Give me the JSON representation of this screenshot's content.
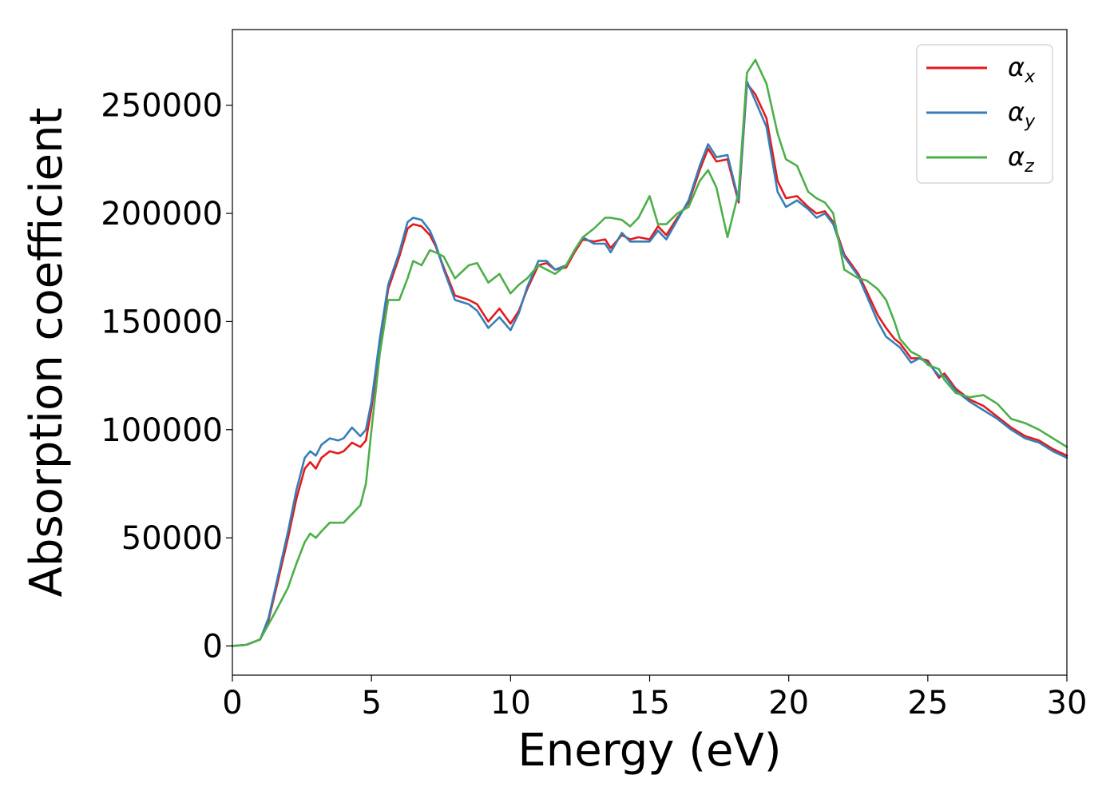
{
  "chart_data": {
    "type": "line",
    "xlabel": "Energy (eV)",
    "ylabel": "Absorption coefficient",
    "xlim": [
      0,
      30
    ],
    "ylim": [
      -13500,
      285000
    ],
    "xticks": [
      "0",
      "5",
      "10",
      "15",
      "20",
      "25",
      "30"
    ],
    "yticks": [
      "0",
      "50000",
      "100000",
      "150000",
      "200000",
      "250000"
    ],
    "grid": false,
    "legend_position": "top-right",
    "series": [
      {
        "name": "α",
        "subscript": "x",
        "color": "#e41a1c",
        "x": [
          0,
          0.5,
          1.0,
          1.3,
          1.6,
          2.0,
          2.3,
          2.6,
          2.8,
          3.0,
          3.2,
          3.5,
          3.8,
          4.0,
          4.3,
          4.6,
          4.8,
          5.0,
          5.3,
          5.6,
          6.0,
          6.3,
          6.5,
          6.8,
          7.1,
          7.3,
          7.6,
          8.0,
          8.5,
          8.8,
          9.2,
          9.6,
          10.0,
          10.3,
          10.6,
          11.0,
          11.3,
          11.6,
          12.0,
          12.3,
          12.6,
          13.0,
          13.4,
          13.6,
          14.0,
          14.3,
          14.6,
          15.0,
          15.3,
          15.6,
          16.0,
          16.4,
          16.8,
          17.1,
          17.4,
          17.8,
          18.2,
          18.5,
          18.8,
          19.2,
          19.6,
          19.9,
          20.3,
          20.7,
          21.0,
          21.3,
          21.6,
          22.0,
          22.5,
          22.8,
          23.2,
          23.5,
          23.8,
          24.0,
          24.4,
          24.7,
          25.0,
          25.4,
          25.6,
          26.0,
          26.5,
          27.0,
          27.5,
          28.0,
          28.5,
          29.0,
          29.5,
          30.0
        ],
        "y": [
          0,
          500,
          3000,
          12000,
          28000,
          50000,
          68000,
          82000,
          85000,
          82000,
          87000,
          90000,
          89000,
          90000,
          94000,
          92000,
          95000,
          110000,
          140000,
          165000,
          180000,
          193000,
          195000,
          194000,
          190000,
          185000,
          175000,
          162000,
          160000,
          158000,
          150000,
          156000,
          149000,
          155000,
          165000,
          176000,
          177000,
          174000,
          175000,
          182000,
          188000,
          187000,
          188000,
          184000,
          190000,
          188000,
          189000,
          188000,
          194000,
          190000,
          198000,
          205000,
          220000,
          230000,
          224000,
          225000,
          205000,
          260000,
          255000,
          244000,
          215000,
          207000,
          208000,
          203000,
          200000,
          201000,
          196000,
          181000,
          172000,
          164000,
          153000,
          147000,
          142000,
          140000,
          133000,
          133000,
          132000,
          124000,
          126000,
          119000,
          114000,
          111000,
          106000,
          101000,
          97000,
          95000,
          91000,
          88000
        ]
      },
      {
        "name": "α",
        "subscript": "y",
        "color": "#377eb8",
        "x": [
          0,
          0.5,
          1.0,
          1.3,
          1.6,
          2.0,
          2.3,
          2.6,
          2.8,
          3.0,
          3.2,
          3.5,
          3.8,
          4.0,
          4.3,
          4.6,
          4.8,
          5.0,
          5.3,
          5.6,
          6.0,
          6.3,
          6.5,
          6.8,
          7.1,
          7.3,
          7.6,
          8.0,
          8.5,
          8.8,
          9.2,
          9.6,
          10.0,
          10.3,
          10.6,
          11.0,
          11.3,
          11.6,
          12.0,
          12.3,
          12.6,
          13.0,
          13.4,
          13.6,
          14.0,
          14.3,
          14.6,
          15.0,
          15.3,
          15.6,
          16.0,
          16.4,
          16.8,
          17.1,
          17.4,
          17.8,
          18.2,
          18.5,
          18.8,
          19.2,
          19.6,
          19.9,
          20.3,
          20.7,
          21.0,
          21.3,
          21.6,
          22.0,
          22.5,
          22.8,
          23.2,
          23.5,
          23.8,
          24.0,
          24.4,
          24.7,
          25.0,
          25.4,
          25.6,
          26.0,
          26.5,
          27.0,
          27.5,
          28.0,
          28.5,
          29.0,
          29.5,
          30.0
        ],
        "y": [
          0,
          500,
          3000,
          13000,
          30000,
          53000,
          72000,
          87000,
          90000,
          88000,
          93000,
          96000,
          95000,
          96000,
          101000,
          97000,
          100000,
          113000,
          142000,
          167000,
          182000,
          196000,
          198000,
          197000,
          192000,
          186000,
          174000,
          160000,
          158000,
          155000,
          147000,
          152000,
          146000,
          154000,
          166000,
          178000,
          178000,
          174000,
          176000,
          183000,
          189000,
          186000,
          186000,
          182000,
          191000,
          187000,
          187000,
          187000,
          192000,
          188000,
          197000,
          206000,
          222000,
          232000,
          226000,
          227000,
          206000,
          261000,
          252000,
          240000,
          210000,
          203000,
          206000,
          202000,
          198000,
          200000,
          195000,
          180000,
          171000,
          162000,
          150000,
          143000,
          140000,
          138000,
          131000,
          133000,
          131000,
          125000,
          125000,
          118000,
          113000,
          109000,
          105000,
          100000,
          96000,
          94000,
          90000,
          87000
        ]
      },
      {
        "name": "α",
        "subscript": "z",
        "color": "#4daf4a",
        "x": [
          0,
          0.5,
          1.0,
          1.3,
          1.6,
          2.0,
          2.3,
          2.6,
          2.8,
          3.0,
          3.2,
          3.5,
          3.8,
          4.0,
          4.3,
          4.6,
          4.8,
          5.0,
          5.3,
          5.6,
          6.0,
          6.3,
          6.5,
          6.8,
          7.1,
          7.3,
          7.6,
          8.0,
          8.5,
          8.8,
          9.2,
          9.6,
          10.0,
          10.3,
          10.6,
          11.0,
          11.3,
          11.6,
          12.0,
          12.3,
          12.6,
          13.0,
          13.4,
          13.6,
          14.0,
          14.3,
          14.6,
          15.0,
          15.3,
          15.6,
          16.0,
          16.4,
          16.8,
          17.1,
          17.4,
          17.8,
          18.2,
          18.5,
          18.8,
          19.2,
          19.6,
          19.9,
          20.3,
          20.7,
          21.0,
          21.3,
          21.6,
          22.0,
          22.5,
          22.8,
          23.2,
          23.5,
          23.8,
          24.0,
          24.4,
          24.7,
          25.0,
          25.4,
          25.6,
          26.0,
          26.5,
          27.0,
          27.5,
          28.0,
          28.5,
          29.0,
          29.5,
          30.0
        ],
        "y": [
          0,
          500,
          3000,
          10000,
          17000,
          27000,
          38000,
          48000,
          52000,
          50000,
          53000,
          57000,
          57000,
          57000,
          61000,
          65000,
          75000,
          100000,
          135000,
          160000,
          160000,
          170000,
          178000,
          176000,
          183000,
          182000,
          180000,
          170000,
          176000,
          177000,
          168000,
          172000,
          163000,
          167000,
          170000,
          176000,
          174000,
          172000,
          176000,
          183000,
          189000,
          193000,
          198000,
          198000,
          197000,
          194000,
          198000,
          208000,
          195000,
          195000,
          200000,
          203000,
          215000,
          220000,
          212000,
          189000,
          210000,
          265000,
          271000,
          260000,
          237000,
          225000,
          222000,
          210000,
          207000,
          205000,
          200000,
          174000,
          170000,
          169000,
          165000,
          160000,
          150000,
          142000,
          136000,
          134000,
          130000,
          128000,
          123000,
          117000,
          115000,
          116000,
          112000,
          105000,
          103000,
          100000,
          96000,
          92000
        ]
      }
    ]
  }
}
